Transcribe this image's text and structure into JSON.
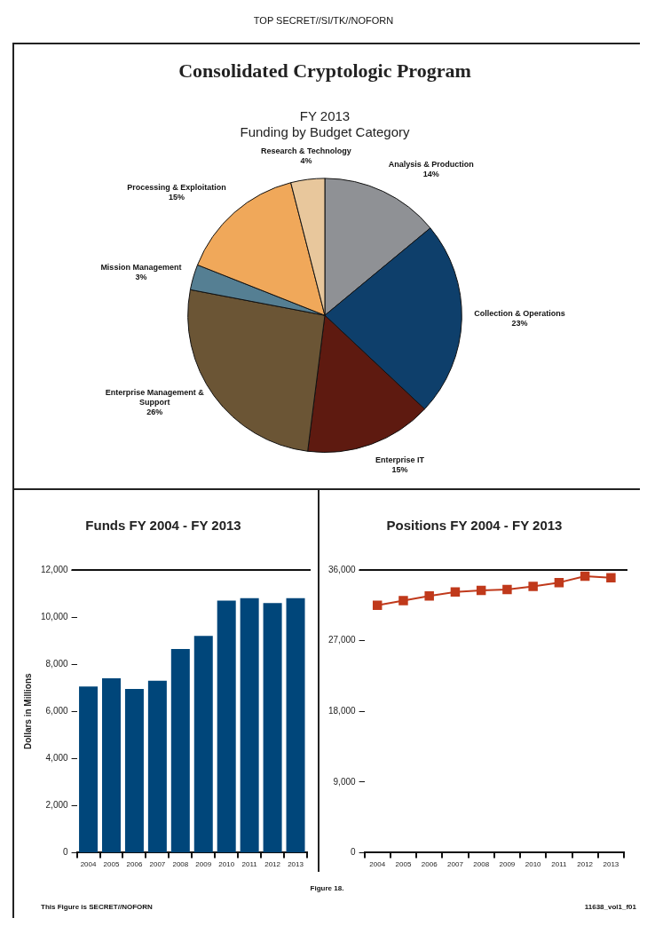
{
  "chart_data": [
    {
      "type": "pie",
      "title": "Consolidated Cryptologic Program",
      "subtitle": "FY 2013\nFunding by Budget Category",
      "annotations": [
        "TOP SECRET//SI/TK//NOFORN"
      ],
      "categories": [
        "Analysis & Production",
        "Collection & Operations",
        "Enterprise IT",
        "Enterprise Management & Support",
        "Mission Management",
        "Processing & Exploitation",
        "Research & Technology"
      ],
      "values": [
        14,
        23,
        15,
        26,
        3,
        15,
        4
      ],
      "value_labels": [
        "14%",
        "23%",
        "15%",
        "26%",
        "3%",
        "15%",
        "4%"
      ],
      "colors": [
        "#8f9195",
        "#0e3f6b",
        "#5e1a10",
        "#6b5535",
        "#557f93",
        "#f0a85a",
        "#e8c79c"
      ]
    },
    {
      "type": "bar",
      "title": "Funds FY 2004 - FY 2013",
      "ylabel": "Dollars in Millions",
      "categories": [
        "2004",
        "2005",
        "2006",
        "2007",
        "2008",
        "2009",
        "2010",
        "2011",
        "2012",
        "2013"
      ],
      "series": [
        {
          "color": "#00467a",
          "values": [
            7050,
            7400,
            6950,
            7300,
            8650,
            9200,
            10700,
            10800,
            10600,
            10800
          ]
        }
      ],
      "ylim": [
        0,
        12000
      ],
      "yticks": [
        0,
        {
          "value": 2000,
          "label": "2,000"
        },
        {
          "value": 4000,
          "label": "4,000"
        },
        {
          "value": 6000,
          "label": "6,000"
        },
        {
          "value": 8000,
          "label": "8,000"
        },
        {
          "value": 10000,
          "label": "10,000"
        },
        {
          "value": 12000,
          "label": "12,000"
        }
      ]
    },
    {
      "type": "line",
      "title": "Positions FY 2004 - FY 2013",
      "marker": "square",
      "categories": [
        "2004",
        "2005",
        "2006",
        "2007",
        "2008",
        "2009",
        "2010",
        "2011",
        "2012",
        "2013"
      ],
      "series": [
        {
          "color": "#c0391b",
          "values": [
            31500,
            32100,
            32700,
            33200,
            33400,
            33500,
            33900,
            34400,
            35200,
            35000
          ]
        }
      ],
      "ylim": [
        0,
        36000
      ],
      "yticks": [
        0,
        {
          "value": 9000,
          "label": "9,000"
        },
        {
          "value": 18000,
          "label": "18,000"
        },
        {
          "value": 27000,
          "label": "27,000"
        },
        {
          "value": 36000,
          "label": "36,000"
        }
      ],
      "annotations": [
        "Figure 18.",
        "This Figure is SECRET//NOFORN",
        "11638_vol1_f01"
      ]
    }
  ]
}
